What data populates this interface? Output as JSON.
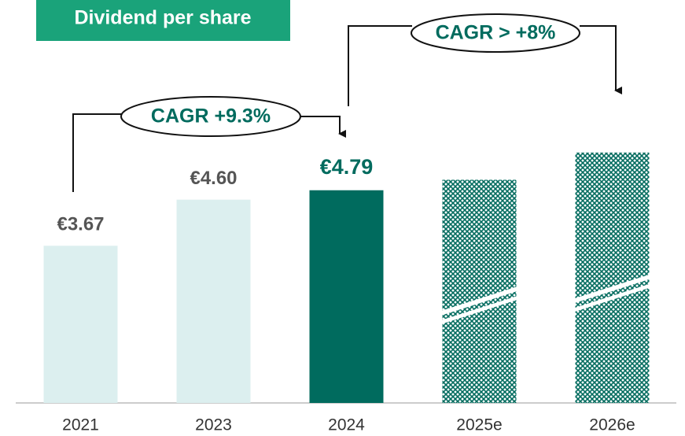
{
  "chart_data": {
    "type": "bar",
    "title": "Dividend per share",
    "categories": [
      "2021",
      "2023",
      "2024",
      "2025e",
      "2026e"
    ],
    "values": [
      3.67,
      4.6,
      4.79,
      5.0,
      5.55
    ],
    "value_labels": [
      "€3.67",
      "€4.60",
      "€4.79",
      null,
      null
    ],
    "colors": [
      "#dcefef",
      "#dcefef",
      "#006b5e",
      "#006b5e",
      "#006b5e"
    ],
    "hatched": [
      false,
      false,
      false,
      true,
      true
    ],
    "ylim": [
      0.5,
      6.5
    ],
    "annotations": [
      "CAGR +9.3%",
      "CAGR > +8%"
    ]
  }
}
